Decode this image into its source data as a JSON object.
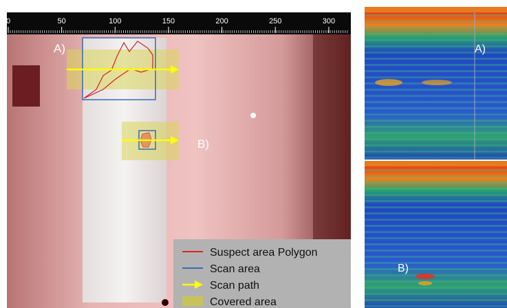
{
  "ruler": {
    "labels": [
      0,
      50,
      100,
      150,
      200,
      250,
      300
    ]
  },
  "image_labels": {
    "a": "A)",
    "b": "B)"
  },
  "legend": {
    "items": [
      "Suspect area Polygon",
      "Scan area",
      "Scan path",
      "Covered area"
    ]
  },
  "radargrams": {
    "top_label": "A)",
    "bottom_label": "B)"
  }
}
